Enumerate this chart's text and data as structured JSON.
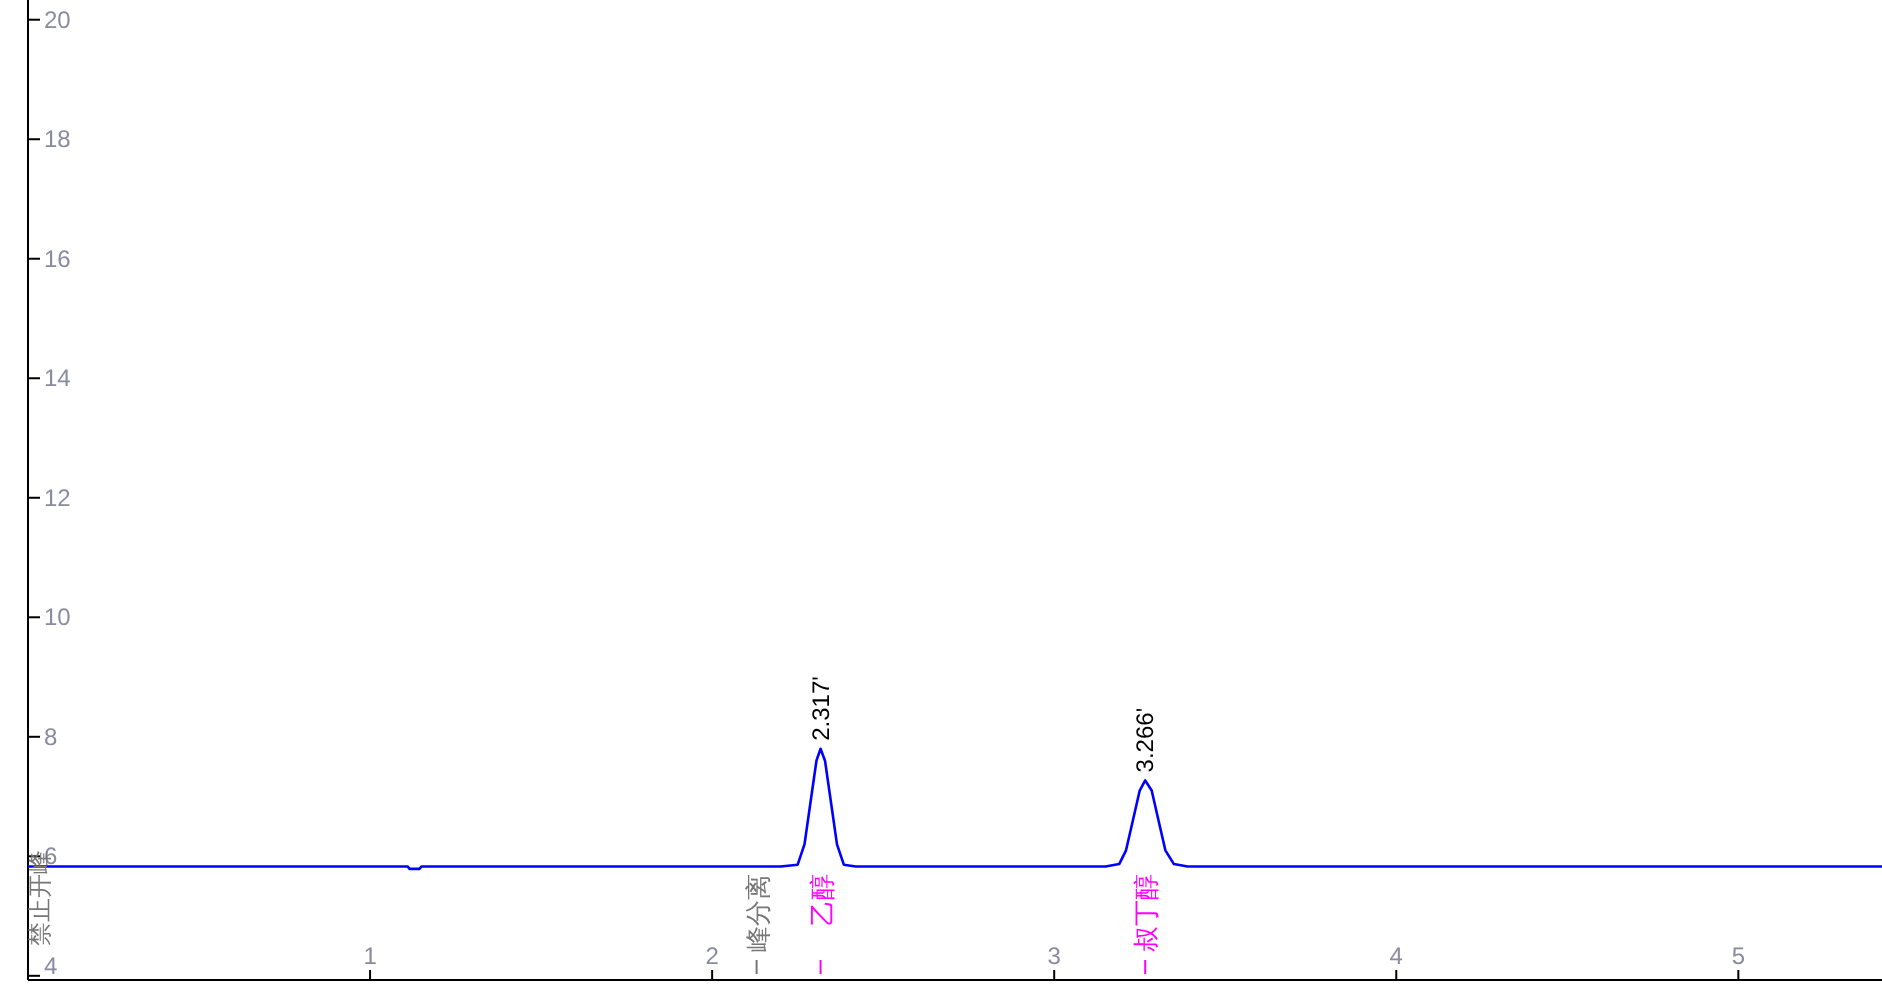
{
  "chart_data": {
    "type": "line",
    "xlim": [
      0,
      5.42
    ],
    "ylim": [
      3.93,
      20.33
    ],
    "xticks": [
      1,
      2,
      3,
      4,
      5
    ],
    "yticks": [
      4,
      6,
      8,
      10,
      12,
      14,
      16,
      18,
      20
    ],
    "grid": false,
    "line_style": "solid",
    "series": [
      {
        "color": "#0000ff",
        "x": [
          0,
          1.11,
          1.115,
          1.145,
          1.15,
          2.2,
          2.25,
          2.27,
          2.29,
          2.305,
          2.317,
          2.33,
          2.345,
          2.365,
          2.385,
          2.42,
          3.15,
          3.19,
          3.21,
          3.23,
          3.25,
          3.266,
          3.285,
          3.305,
          3.325,
          3.35,
          3.39,
          5.42
        ],
        "values": [
          5.83,
          5.83,
          5.79,
          5.79,
          5.83,
          5.83,
          5.86,
          6.2,
          7.0,
          7.6,
          7.8,
          7.6,
          7.0,
          6.2,
          5.86,
          5.83,
          5.83,
          5.87,
          6.1,
          6.6,
          7.1,
          7.27,
          7.1,
          6.6,
          6.1,
          5.87,
          5.83,
          5.83
        ]
      }
    ],
    "annotations": [
      {
        "text": "2.317'",
        "x": 2.317,
        "y": 7.8
      },
      {
        "text": "3.266'",
        "x": 3.266,
        "y": 7.27
      },
      {
        "text": "峰分离",
        "x": 2.13,
        "y": 5.83
      },
      "乙醇",
      "叔丁醇",
      {
        "text": "禁止开峰",
        "x": 0,
        "y": 5.83
      }
    ]
  }
}
